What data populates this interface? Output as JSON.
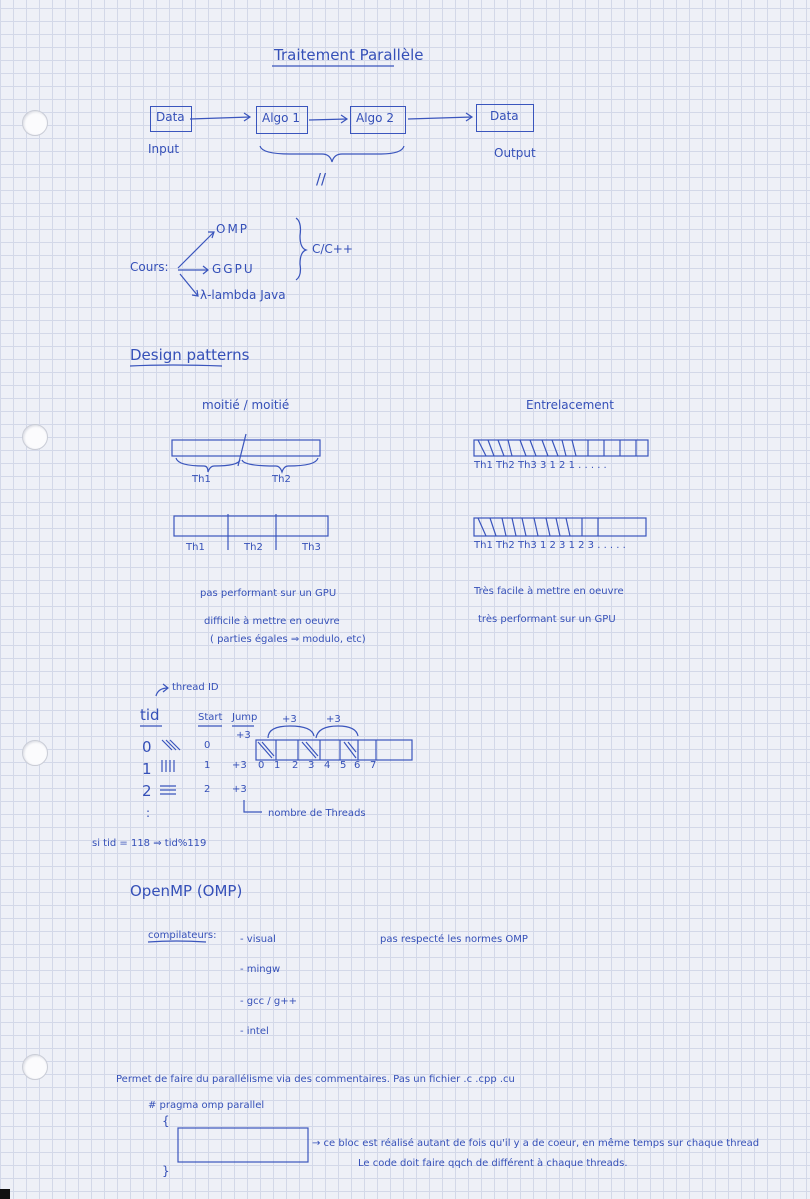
{
  "title": "Traitement Parallèle",
  "pipeline": {
    "data_in": "Data",
    "algo1": "Algo 1",
    "algo2": "Algo 2",
    "data_out": "Data",
    "input_label": "Input",
    "output_label": "Output",
    "parallel_mark": "//"
  },
  "course": {
    "label": "Cours:",
    "omp": "OMP",
    "gpu": "GGPU",
    "lambda": "λ-lambda  Java",
    "c_cpp": "C/C++"
  },
  "design_patterns": {
    "heading": "Design patterns",
    "left_title": "moitié / moitié",
    "right_title": "Entrelacement",
    "th1": "Th1",
    "th2": "Th2",
    "th3a": "Th1",
    "th3b": "Th2",
    "th3c": "Th3",
    "interleave_row1": "Th1 Th2 Th3 3 1 2 1 . . . . .",
    "interleave_row2": "Th1 Th2 Th3 1 2 3 1 2 3 . . . . .",
    "left_note1": "pas performant sur un GPU",
    "left_note2": "difficile à mettre en oeuvre",
    "left_note3": "( parties égales ⇒ modulo, etc)",
    "right_note1": "Très facile à mettre en oeuvre",
    "right_note2": "très performant sur un GPU"
  },
  "thread_table": {
    "thread_id_note": "thread ID",
    "col_tid": "tid",
    "col_start": "Start",
    "col_jump": "Jump",
    "rows": [
      {
        "tid": "0",
        "start": "0",
        "jump": "+3"
      },
      {
        "tid": "1",
        "start": "1",
        "jump": "+3"
      },
      {
        "tid": "2",
        "start": "2",
        "jump": "+3"
      }
    ],
    "jump_labels": [
      "+3",
      "+3"
    ],
    "indices": [
      "0",
      "1",
      "2",
      "3",
      "4",
      "5",
      "6",
      "7"
    ],
    "nb_threads_note": "nombre de Threads",
    "dots": ":",
    "formula": "si tid = 118 ⇒ tid%119"
  },
  "openmp": {
    "heading": "OpenMP (OMP)",
    "compilers_label": "compilateurs:",
    "compilers": [
      "- visual",
      "- mingw",
      "- gcc / g++",
      "- intel"
    ],
    "norm_note": "pas respecté les normes OMP",
    "line1": "Permet de faire du parallélisme via des commentaires.  Pas un fichier  .c   .cpp   .cu",
    "pragma": "# pragma  omp parallel",
    "open_brace": "{",
    "close_brace": "}",
    "block_note1": "→ ce bloc est réalisé autant de fois qu'il y a de coeur, en même temps sur chaque thread",
    "block_note2": "Le code doit faire qqch de différent à chaque threads."
  }
}
